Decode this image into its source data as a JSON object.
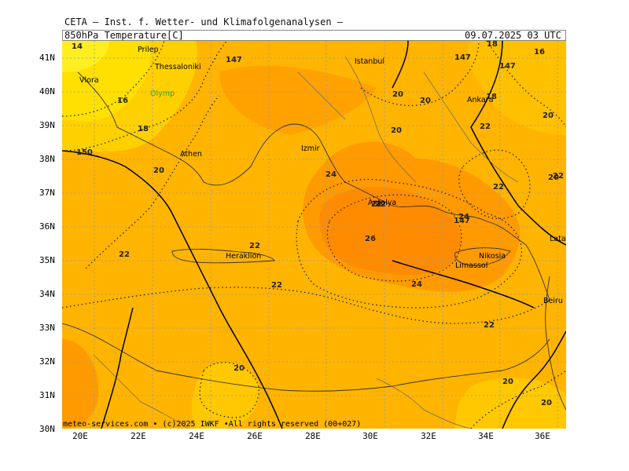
{
  "header": {
    "institute": "CETA — Inst. f. Wetter- und Klimafolgenanalysen —",
    "parameter": "850hPa Temperature[C]",
    "datetime": "09.07.2025 03 UTC"
  },
  "footer": "meteo-services.com • (c)2025 IWKF •All rights reserved (00+027)",
  "lat_labels": [
    "41N",
    "40N",
    "39N",
    "38N",
    "37N",
    "36N",
    "35N",
    "34N",
    "33N",
    "32N",
    "31N",
    "30N"
  ],
  "lon_labels": [
    "20E",
    "22E",
    "24E",
    "26E",
    "28E",
    "30E",
    "32E",
    "34E",
    "36E"
  ],
  "cities": [
    {
      "name": "Thessaloniki",
      "color": "#000"
    },
    {
      "name": "Istanbul",
      "color": "#000"
    },
    {
      "name": "Vlora",
      "color": "#000"
    },
    {
      "name": "Prilep",
      "color": "#000"
    },
    {
      "name": "Olymp",
      "color": "#39a02a"
    },
    {
      "name": "Ankara",
      "color": "#000"
    },
    {
      "name": "Athen",
      "color": "#000"
    },
    {
      "name": "Izmir",
      "color": "#000"
    },
    {
      "name": "Antalya",
      "color": "#000"
    },
    {
      "name": "Heraklion",
      "color": "#000"
    },
    {
      "name": "Nikosia",
      "color": "#000"
    },
    {
      "name": "Limassol",
      "color": "#000"
    },
    {
      "name": "Latakia",
      "color": "#000"
    },
    {
      "name": "Beiru",
      "color": "#000"
    }
  ],
  "isotherm_labels": [
    {
      "text": "14"
    },
    {
      "text": "16"
    },
    {
      "text": "147"
    },
    {
      "text": "18"
    },
    {
      "text": "16"
    },
    {
      "text": "18"
    },
    {
      "text": "150"
    },
    {
      "text": "20"
    },
    {
      "text": "22"
    },
    {
      "text": "20"
    },
    {
      "text": "147"
    },
    {
      "text": "147"
    },
    {
      "text": "18"
    },
    {
      "text": "20"
    },
    {
      "text": "20"
    },
    {
      "text": "22"
    },
    {
      "text": "20"
    },
    {
      "text": "24"
    },
    {
      "text": "22"
    },
    {
      "text": "22"
    },
    {
      "text": "22"
    },
    {
      "text": "20"
    },
    {
      "text": "24"
    },
    {
      "text": "147"
    },
    {
      "text": "26"
    },
    {
      "text": "22"
    },
    {
      "text": "22"
    },
    {
      "text": "22"
    },
    {
      "text": "24"
    },
    {
      "text": "22"
    },
    {
      "text": "20"
    },
    {
      "text": "20"
    },
    {
      "text": "20"
    }
  ]
}
